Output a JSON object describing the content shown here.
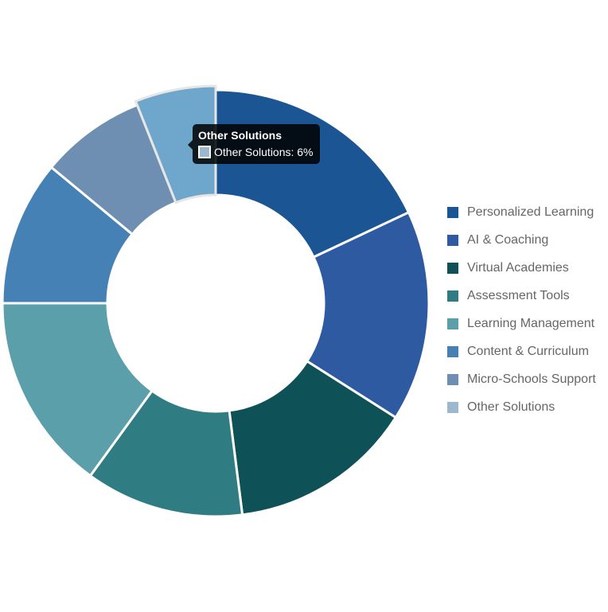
{
  "chart_data": {
    "type": "doughnut",
    "categories": [
      "Personalized Learning",
      "AI & Coaching",
      "Virtual Academies",
      "Assessment Tools",
      "Learning Management",
      "Content & Curriculum",
      "Micro-Schools Support",
      "Other Solutions"
    ],
    "values": [
      18,
      16,
      14,
      12,
      15,
      11,
      8,
      6
    ],
    "unit": "%",
    "colors": [
      "#1c5593",
      "#2e5aa1",
      "#0e5157",
      "#2f7d82",
      "#5a9fa9",
      "#4581b5",
      "#6e8fb1",
      "#6fa6cb"
    ],
    "legend_position": "right",
    "highlighted_index": 7
  },
  "legend": {
    "swatch_colors": [
      "#1c5593",
      "#2e5aa1",
      "#0e5157",
      "#2f7d82",
      "#5a9fa9",
      "#4581b5",
      "#6e8fb1",
      "#9bb8cc"
    ]
  },
  "tooltip": {
    "title": "Other Solutions",
    "text": "Other Solutions: 6%",
    "swatch_color": "#9bb8cc"
  }
}
